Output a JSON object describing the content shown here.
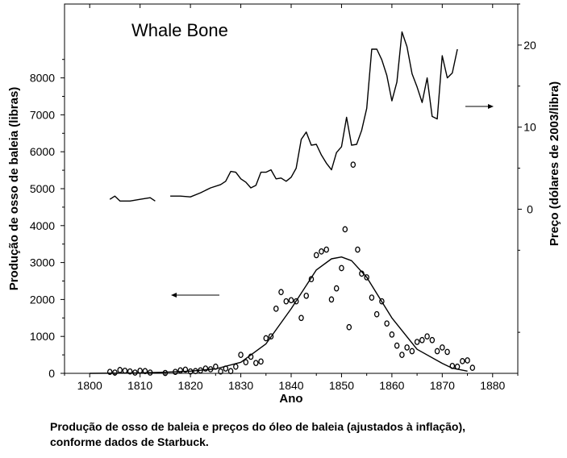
{
  "chart_data": {
    "type": "scatter",
    "title": "Whale Bone",
    "xlabel": "Ano",
    "ylabel": "Produção de osso de baleia (libras)",
    "y2label": "Preço (dólares de 2003/libra)",
    "xlim": [
      1795,
      1885
    ],
    "ylim": [
      0,
      10000
    ],
    "y2lim": [
      -20,
      25
    ],
    "xticks": [
      1800,
      1810,
      1820,
      1830,
      1840,
      1850,
      1860,
      1870,
      1880
    ],
    "yticks": [
      0,
      1000,
      2000,
      3000,
      4000,
      5000,
      6000,
      7000,
      8000
    ],
    "y2ticks": [
      0,
      10,
      20
    ],
    "grid": false,
    "series": [
      {
        "role": "production",
        "axis": "left",
        "marker": "circle",
        "points": [
          [
            1804,
            40
          ],
          [
            1805,
            20
          ],
          [
            1806,
            90
          ],
          [
            1807,
            70
          ],
          [
            1808,
            50
          ],
          [
            1809,
            20
          ],
          [
            1810,
            70
          ],
          [
            1811,
            60
          ],
          [
            1812,
            20
          ],
          [
            1815,
            10
          ],
          [
            1817,
            40
          ],
          [
            1818,
            80
          ],
          [
            1819,
            100
          ],
          [
            1820,
            50
          ],
          [
            1821,
            60
          ],
          [
            1822,
            80
          ],
          [
            1823,
            130
          ],
          [
            1824,
            110
          ],
          [
            1825,
            180
          ],
          [
            1826,
            50
          ],
          [
            1827,
            130
          ],
          [
            1828,
            60
          ],
          [
            1829,
            180
          ],
          [
            1830,
            500
          ],
          [
            1831,
            300
          ],
          [
            1832,
            450
          ],
          [
            1833,
            280
          ],
          [
            1834,
            320
          ],
          [
            1835,
            950
          ],
          [
            1836,
            1000
          ],
          [
            1837,
            1750
          ],
          [
            1838,
            2200
          ],
          [
            1839,
            1950
          ],
          [
            1840,
            1980
          ],
          [
            1841,
            1950
          ],
          [
            1842,
            1500
          ],
          [
            1843,
            2100
          ],
          [
            1844,
            2550
          ],
          [
            1845,
            3200
          ],
          [
            1846,
            3300
          ],
          [
            1847,
            3350
          ],
          [
            1848,
            2000
          ],
          [
            1849,
            2300
          ],
          [
            1850,
            2850
          ],
          [
            1850.7,
            3900
          ],
          [
            1851.5,
            1250
          ],
          [
            1852.3,
            5650
          ],
          [
            1853.2,
            3350
          ],
          [
            1854,
            2700
          ],
          [
            1855,
            2600
          ],
          [
            1856,
            2050
          ],
          [
            1857,
            1600
          ],
          [
            1858,
            1950
          ],
          [
            1859,
            1350
          ],
          [
            1860,
            1050
          ],
          [
            1861,
            750
          ],
          [
            1862,
            500
          ],
          [
            1863,
            700
          ],
          [
            1864,
            600
          ],
          [
            1865,
            850
          ],
          [
            1866,
            900
          ],
          [
            1867,
            1000
          ],
          [
            1868,
            900
          ],
          [
            1869,
            600
          ],
          [
            1870,
            700
          ],
          [
            1871,
            580
          ],
          [
            1872,
            200
          ],
          [
            1873,
            180
          ],
          [
            1874,
            330
          ],
          [
            1875,
            350
          ],
          [
            1876,
            150
          ]
        ]
      },
      {
        "role": "production-fit",
        "axis": "left",
        "marker": "line",
        "points": [
          [
            1800,
            0
          ],
          [
            1810,
            10
          ],
          [
            1815,
            30
          ],
          [
            1820,
            60
          ],
          [
            1825,
            120
          ],
          [
            1830,
            300
          ],
          [
            1835,
            800
          ],
          [
            1840,
            1750
          ],
          [
            1845,
            2800
          ],
          [
            1848,
            3100
          ],
          [
            1850,
            3150
          ],
          [
            1852,
            3050
          ],
          [
            1855,
            2600
          ],
          [
            1860,
            1500
          ],
          [
            1865,
            650
          ],
          [
            1870,
            270
          ],
          [
            1872,
            140
          ],
          [
            1875,
            60
          ]
        ]
      },
      {
        "role": "price",
        "axis": "right",
        "marker": "line",
        "segments": [
          [
            [
              1804,
              1.2
            ],
            [
              1805,
              1.6
            ],
            [
              1806,
              1.0
            ],
            [
              1808,
              1.0
            ],
            [
              1810,
              1.2
            ],
            [
              1812,
              1.4
            ],
            [
              1813,
              1.0
            ]
          ],
          [
            [
              1816,
              1.6
            ],
            [
              1818,
              1.6
            ],
            [
              1820,
              1.5
            ],
            [
              1822,
              2.0
            ],
            [
              1824,
              2.6
            ],
            [
              1826,
              3.0
            ],
            [
              1827,
              3.4
            ],
            [
              1828,
              4.6
            ],
            [
              1829,
              4.5
            ],
            [
              1830,
              3.7
            ],
            [
              1831,
              3.3
            ],
            [
              1832,
              2.6
            ],
            [
              1833,
              2.9
            ],
            [
              1834,
              4.5
            ],
            [
              1835,
              4.5
            ],
            [
              1836,
              4.8
            ],
            [
              1837,
              3.7
            ],
            [
              1838,
              3.8
            ],
            [
              1839,
              3.4
            ],
            [
              1840,
              3.9
            ],
            [
              1841,
              5.0
            ],
            [
              1842,
              8.5
            ],
            [
              1843,
              9.4
            ],
            [
              1844,
              7.8
            ],
            [
              1845,
              7.9
            ],
            [
              1846,
              6.6
            ],
            [
              1847,
              5.6
            ],
            [
              1848,
              4.8
            ],
            [
              1849,
              6.9
            ],
            [
              1850,
              7.6
            ],
            [
              1851,
              11.2
            ],
            [
              1852,
              7.8
            ],
            [
              1853,
              7.9
            ],
            [
              1854,
              9.6
            ],
            [
              1855,
              12.3
            ],
            [
              1856,
              19.5
            ],
            [
              1857,
              19.5
            ],
            [
              1858,
              18.2
            ],
            [
              1859,
              16.3
            ],
            [
              1860,
              13.2
            ],
            [
              1861,
              15.5
            ],
            [
              1862,
              21.6
            ],
            [
              1863,
              19.8
            ],
            [
              1864,
              16.5
            ],
            [
              1865,
              14.9
            ],
            [
              1866,
              13.0
            ],
            [
              1867,
              16.0
            ],
            [
              1868,
              11.3
            ],
            [
              1869,
              11.0
            ],
            [
              1870,
              18.7
            ],
            [
              1871,
              16.0
            ],
            [
              1872,
              16.6
            ],
            [
              1873,
              19.5
            ]
          ]
        ]
      }
    ]
  },
  "caption": {
    "line1": "Produção de osso de baleia e preços do óleo de baleia (ajustados à inflação),",
    "line2": "conforme dados de Starbuck."
  }
}
